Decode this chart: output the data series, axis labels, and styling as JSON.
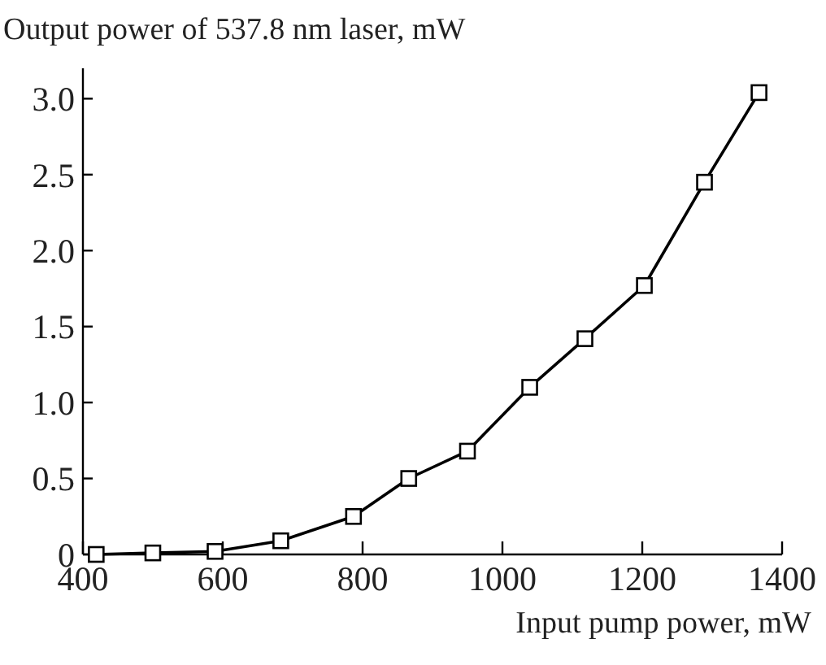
{
  "chart_data": {
    "type": "line",
    "ylabel": "Output power of 537.8 nm laser, mW",
    "xlabel": "Input pump power, mW",
    "series": [
      {
        "color": "#000000",
        "x": [
          419,
          500,
          589,
          683,
          787,
          866,
          950,
          1039,
          1118,
          1203,
          1289,
          1367
        ],
        "values": [
          0,
          0.01,
          0.02,
          0.09,
          0.25,
          0.5,
          0.68,
          1.1,
          1.42,
          1.77,
          2.45,
          3.04
        ]
      }
    ],
    "xlim": [
      400,
      1400
    ],
    "xticks": [
      400,
      600,
      800,
      1000,
      1200,
      1400
    ],
    "ylim": [
      0,
      3.2
    ],
    "yticks": [
      {
        "value": 0,
        "label": "0"
      },
      {
        "value": 0.5,
        "label": "0.5"
      },
      {
        "value": 1,
        "label": "1.0"
      },
      {
        "value": 1.5,
        "label": "1.5"
      },
      {
        "value": 2,
        "label": "2.0"
      },
      {
        "value": 2.5,
        "label": "2.5"
      },
      {
        "value": 3,
        "label": "3.0"
      }
    ],
    "marker": "square",
    "line_style": "solid"
  }
}
